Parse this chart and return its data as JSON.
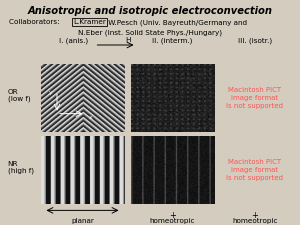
{
  "title": "Anisotropic and isotropic electroconvection",
  "kramer_boxed": "L.Kramer",
  "col_labels": [
    "I. (anis.)",
    "II. (interm.)",
    "III. (isotr.)"
  ],
  "bottom_labels": [
    "planar",
    "homeotropic",
    "homeotropic"
  ],
  "pict_not_supported": "Macintosh PICT\nimage format\nis not supported",
  "h_arrow_label": "H",
  "background_color": "#d4ccbf",
  "text_color": "#000000",
  "pict_color": "#ff5555",
  "bx1l": 0.135,
  "bx1r": 0.415,
  "bx2l": 0.435,
  "bx2r": 0.715,
  "br1t": 0.715,
  "br1b": 0.415,
  "br2t": 0.395,
  "br2b": 0.095
}
